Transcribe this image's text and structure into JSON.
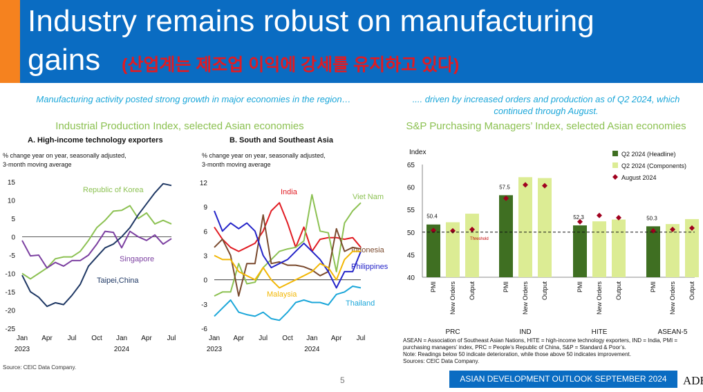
{
  "header": {
    "title_line1": "Industry remains robust on manufacturing",
    "title_line2": "gains",
    "title_korean": "(산업계는 제조업 이익에 강세를 유지하고 있다)"
  },
  "left": {
    "subtitle": "Manufacturing activity posted strong growth in major economies in the region…",
    "chart_title": "Industrial Production Index, selected Asian economies",
    "source": "Source: CEIC Data Company."
  },
  "right": {
    "subtitle": ".... driven by increased orders and production as of Q2 2024, which continued through August.",
    "chart_title": "S&P Purchasing Managers’ Index, selected Asian economies",
    "notes": [
      "ASEAN = Association of Southeast Asian Nations, HITE = high-income technology exporters, IND = India, PMI = purchasing managers’ index, PRC = People’s Republic of China, S&P = Standard & Poor’s.",
      "Note: Readings below 50 indicate deterioration, while those above 50 indicates improvement.",
      "Sources:  CEIC Data Company."
    ]
  },
  "footer": {
    "page_number": "5",
    "banner": "ASIAN DEVELOPMENT OUTLOOK SEPTEMBER 2024",
    "logo_text": "ADB"
  },
  "chart_data": [
    {
      "type": "line",
      "title": "A. High-income technology exporters",
      "ylabel": "% change year on year, seasonally adjusted, 3-month moving average",
      "ylim": [
        -25,
        15
      ],
      "yticks": [
        15,
        10,
        5,
        0,
        -5,
        -10,
        -15,
        -20,
        -25
      ],
      "xticks": [
        {
          "i": 0,
          "label": "Jan",
          "year": "2023"
        },
        {
          "i": 3,
          "label": "Apr"
        },
        {
          "i": 6,
          "label": "Jul"
        },
        {
          "i": 9,
          "label": "Oct"
        },
        {
          "i": 12,
          "label": "Jan",
          "year": "2024"
        },
        {
          "i": 15,
          "label": "Apr"
        },
        {
          "i": 18,
          "label": "Jul"
        }
      ],
      "n_points": 19,
      "series": [
        {
          "name": "Republic of Korea",
          "color": "#8cc152",
          "values": [
            -10,
            -11.5,
            -10,
            -8.5,
            -6,
            -5.5,
            -5.5,
            -4,
            -1,
            2.5,
            4.5,
            7,
            7.2,
            8.5,
            5,
            6.5,
            3.5,
            4.5,
            3.5
          ]
        },
        {
          "name": "Singapore",
          "color": "#7b3fa0",
          "values": [
            -1,
            -5.2,
            -5,
            -8.5,
            -7,
            -8,
            -6.5,
            -6.5,
            -5,
            -2,
            1.5,
            1.2,
            -3,
            1.5,
            0,
            -1,
            0.5,
            -2,
            -0.5
          ]
        },
        {
          "name": "Taipei,China",
          "color": "#1f3864",
          "values": [
            -10.5,
            -15,
            -16.5,
            -19,
            -18,
            -18.5,
            -16,
            -13,
            -8,
            -5.5,
            -3,
            -2,
            0,
            2.5,
            6,
            9,
            12,
            14.5,
            14
          ]
        }
      ]
    },
    {
      "type": "line",
      "title": "B. South and Southeast Asia",
      "ylabel": "% change year on year, seasonally adjusted, 3-month moving average",
      "ylim": [
        -6,
        12
      ],
      "yticks": [
        12,
        9,
        6,
        3,
        0,
        -3,
        -6
      ],
      "xticks": [
        {
          "i": 0,
          "label": "Jan",
          "year": "2023"
        },
        {
          "i": 3,
          "label": "Apr"
        },
        {
          "i": 6,
          "label": "Jul"
        },
        {
          "i": 9,
          "label": "Oct"
        },
        {
          "i": 12,
          "label": "Jan",
          "year": "2024"
        },
        {
          "i": 15,
          "label": "Apr"
        },
        {
          "i": 18,
          "label": "Jul"
        }
      ],
      "n_points": 19,
      "series": [
        {
          "name": "India",
          "color": "#e11b22",
          "values": [
            6.5,
            5,
            4,
            3.5,
            4,
            4.5,
            6,
            8.5,
            9.5,
            7,
            4,
            6.5,
            3.5,
            5,
            5.2,
            5.2,
            5,
            5.2,
            4
          ]
        },
        {
          "name": "Viet Nam",
          "color": "#8cc152",
          "values": [
            -2,
            -1.5,
            -1.5,
            2,
            -0.5,
            -0.3,
            1.5,
            2.5,
            3.5,
            3.8,
            4,
            4.8,
            10.5,
            6,
            5.8,
            1,
            7,
            8.5,
            9.5
          ]
        },
        {
          "name": "Indonesia",
          "color": "#7a4a2e",
          "values": [
            4,
            5,
            3,
            -2,
            2,
            2,
            8,
            2,
            2.2,
            1.8,
            1.8,
            1.6,
            1.2,
            0.5,
            1,
            6.3,
            3.5,
            4,
            3.8
          ]
        },
        {
          "name": "Philippines",
          "color": "#2323c8",
          "values": [
            8.5,
            6,
            7,
            6.3,
            7,
            6,
            3,
            1.5,
            2,
            2.5,
            3.5,
            4.5,
            3.5,
            2.5,
            1,
            -1,
            1,
            1,
            3.5
          ]
        },
        {
          "name": "Malaysia",
          "color": "#f2b705",
          "values": [
            3,
            2.5,
            2.5,
            1,
            0.5,
            0,
            1.5,
            0,
            -1,
            -0.5,
            0,
            0.5,
            1,
            2,
            1.5,
            0,
            2.5,
            3.5,
            3.5
          ]
        },
        {
          "name": "Thailand",
          "color": "#1aa6d9",
          "values": [
            -4.5,
            -3.5,
            -2.5,
            -4,
            -4.3,
            -4.5,
            -4,
            -4.8,
            -5,
            -4,
            -2.8,
            -2.5,
            -2.8,
            -2.8,
            -3.1,
            -1.8,
            -1.5,
            -0.8,
            -1
          ]
        }
      ],
      "labels": {
        "India": "India",
        "Viet Nam": "Viet Nam",
        "Indonesia": "Indonesia",
        "Philippines": "Philippines",
        "Malaysia": "Malaysia",
        "Thailand": "Thailand"
      }
    },
    {
      "type": "bar",
      "ylabel": "Index",
      "ylim": [
        40,
        65
      ],
      "yticks": [
        65,
        60,
        55,
        50,
        45,
        40
      ],
      "threshold": 50,
      "threshold_label": "Threshold",
      "groups": [
        {
          "name": "PRC",
          "categories": [
            "PMI",
            "New Orders",
            "Output"
          ],
          "q2": [
            51.7,
            52.2,
            54.1
          ],
          "aug": [
            50.4,
            50.3,
            50.6
          ],
          "label": "50.4"
        },
        {
          "name": "IND",
          "categories": [
            "PMI",
            "New Orders",
            "Output"
          ],
          "q2": [
            58.2,
            62.2,
            62.0
          ],
          "aug": [
            57.5,
            60.5,
            60.3
          ],
          "label": "57.5"
        },
        {
          "name": "HITE",
          "categories": [
            "PMI",
            "New Orders",
            "Output"
          ],
          "q2": [
            51.5,
            52.4,
            52.8
          ],
          "aug": [
            52.3,
            53.7,
            53.2
          ],
          "label": "52.3"
        },
        {
          "name": "ASEAN-5",
          "categories": [
            "PMI",
            "New Orders",
            "Output"
          ],
          "q2": [
            51.3,
            51.8,
            52.9
          ],
          "aug": [
            50.3,
            50.6,
            50.9
          ],
          "label": "50.3"
        }
      ],
      "legend": [
        {
          "label": "Q2 2024 (Headline)",
          "color": "#3f6f22",
          "kind": "square"
        },
        {
          "label": "Q2 2024 (Components)",
          "color": "#dcec94",
          "kind": "square"
        },
        {
          "label": "August 2024",
          "color": "#a0001e",
          "kind": "diamond"
        }
      ]
    }
  ]
}
